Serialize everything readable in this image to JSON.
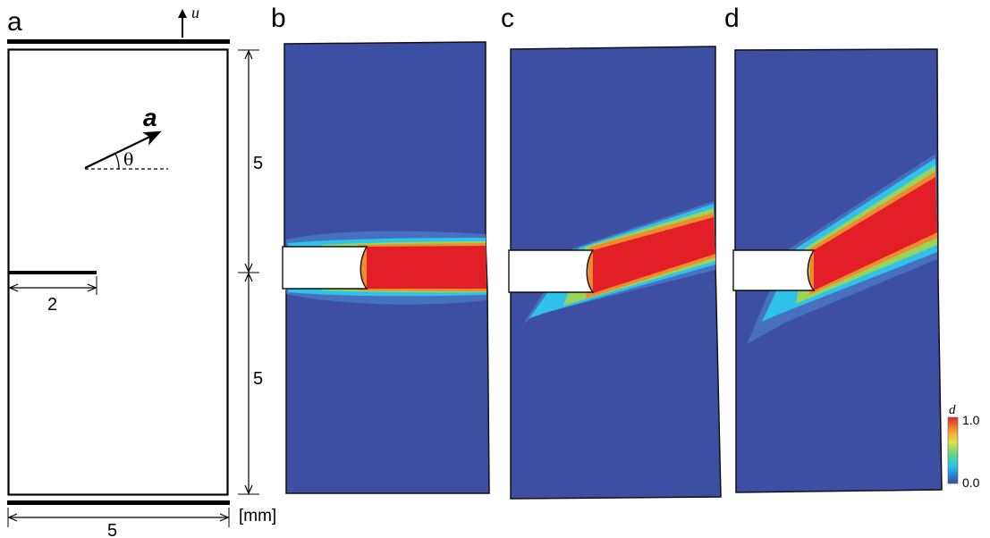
{
  "panels": {
    "a": {
      "label": "a"
    },
    "b": {
      "label": "b"
    },
    "c": {
      "label": "c"
    },
    "d": {
      "label": "d"
    }
  },
  "schematic": {
    "displacement_label": "u",
    "vector_label": "a",
    "angle_label": "θ",
    "crack_length_label": "2",
    "upper_height_label": "5",
    "lower_height_label": "5",
    "width_label": "5",
    "unit_label": "[mm]"
  },
  "legend": {
    "variable": "d",
    "max_label": "1.0",
    "min_label": "0.0",
    "colors": [
      "#3a4da0",
      "#2b7fd4",
      "#28c0e8",
      "#4ad2a6",
      "#8fd66a",
      "#d8e44a",
      "#f5b23a",
      "#ee6a2a",
      "#e02a24"
    ]
  },
  "colors": {
    "field_background": "#3c4fa3",
    "damage_high": "#e21f26",
    "damage_mid": "#f08a2c",
    "damage_low": "#9ad35a",
    "damage_edge": "#2fc2ea",
    "damage_halo": "#4a78c6"
  }
}
